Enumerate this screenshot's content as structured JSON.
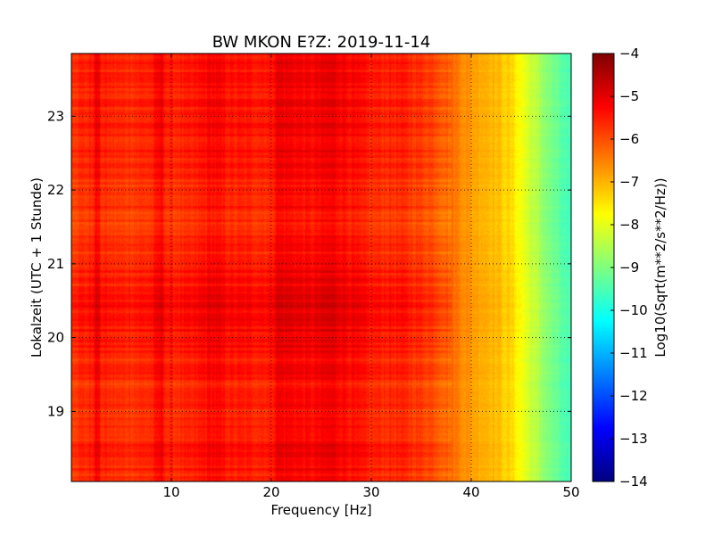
{
  "chart_data": {
    "type": "heatmap",
    "title": "BW MKON E?Z: 2019-11-14",
    "xlabel": "Frequency [Hz]",
    "ylabel": "Lokalzeit (UTC + 1 Stunde)",
    "xlim": [
      0,
      50
    ],
    "ylim": [
      23.85,
      18.05
    ],
    "x_ticks": [
      "10",
      "20",
      "30",
      "40",
      "50"
    ],
    "x_tick_values": [
      10,
      20,
      30,
      40,
      50
    ],
    "y_ticks": [
      "19",
      "20",
      "21",
      "22",
      "23"
    ],
    "y_tick_values": [
      19,
      20,
      21,
      22,
      23
    ],
    "grid": true,
    "colorbar": {
      "label": "Log10(Sqrt(m**2/s**2/Hz))",
      "range": [
        -14,
        -4
      ],
      "ticks": [
        "−4",
        "−5",
        "−6",
        "−7",
        "−8",
        "−9",
        "−10",
        "−11",
        "−12",
        "−13",
        "−14"
      ],
      "tick_values": [
        -4,
        -5,
        -6,
        -7,
        -8,
        -9,
        -10,
        -11,
        -12,
        -13,
        -14
      ],
      "colormap": "jet"
    },
    "spectral_profile": {
      "frequency_hz": [
        0,
        2,
        2.5,
        3,
        5,
        8,
        9,
        9.5,
        12,
        14,
        16,
        20,
        20.5,
        24,
        26,
        28,
        30,
        33,
        36,
        38,
        40,
        42,
        44,
        46,
        48,
        50
      ],
      "log10_amplitude": [
        -5.7,
        -5.6,
        -5.1,
        -5.6,
        -5.7,
        -5.6,
        -5.15,
        -5.6,
        -5.6,
        -5.25,
        -5.5,
        -5.5,
        -5.1,
        -5.3,
        -5.1,
        -5.35,
        -5.6,
        -5.6,
        -5.9,
        -6.3,
        -6.8,
        -7.0,
        -7.4,
        -8.3,
        -9.1,
        -9.7
      ]
    },
    "time_modulation": {
      "hour": [
        18.05,
        18.5,
        19.0,
        19.5,
        20.0,
        20.5,
        21.0,
        21.5,
        22.0,
        22.5,
        23.0,
        23.5,
        23.85
      ],
      "log10_offset": [
        0.0,
        0.05,
        -0.1,
        -0.05,
        0.15,
        0.25,
        0.0,
        -0.15,
        -0.1,
        0.0,
        0.05,
        0.05,
        0.0
      ]
    }
  }
}
